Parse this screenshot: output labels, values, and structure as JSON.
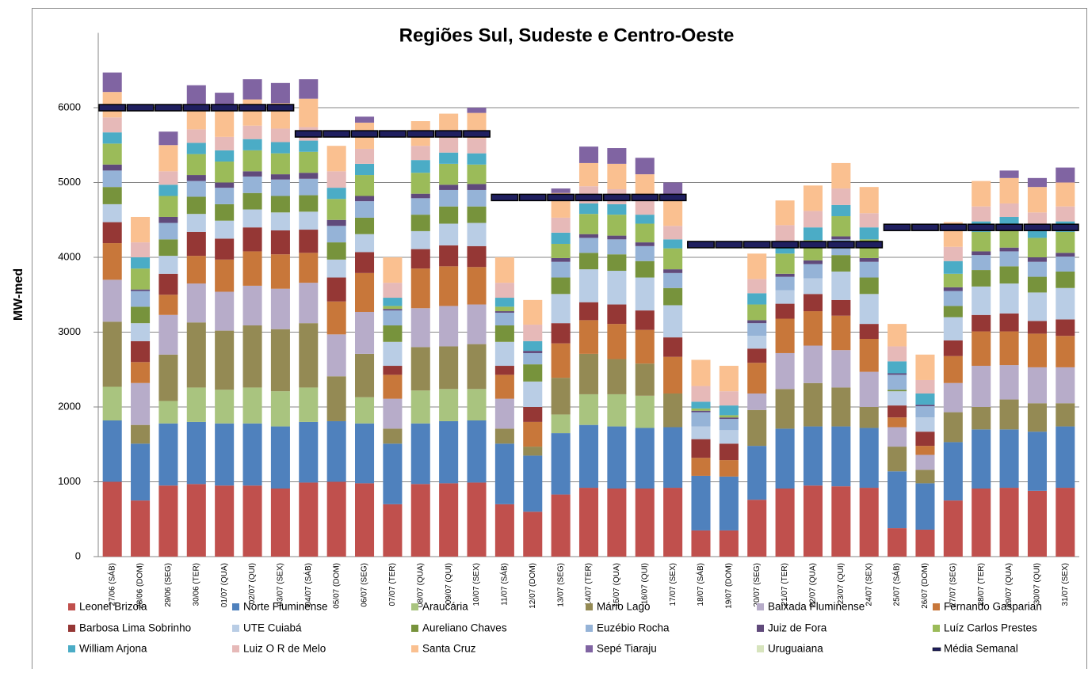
{
  "chart_data": {
    "type": "bar",
    "stacked": true,
    "title": "Regiões Sul, Sudeste e Centro-Oeste",
    "y_label": "MW-med",
    "ylim": [
      0,
      7000
    ],
    "yticks": [
      0,
      1000,
      2000,
      3000,
      4000,
      5000,
      6000
    ],
    "grid": true,
    "legend": "bottom",
    "categories": [
      "27/06 (SÁB)",
      "28/06 (DOM)",
      "29/06 (SEG)",
      "30/06 (TER)",
      "01/07 (QUA)",
      "02/07 (QUI)",
      "03/07 (SEX)",
      "04/07 (SÁB)",
      "05/07 (DOM)",
      "06/07 (SEG)",
      "07/07 (TER)",
      "08/07 (QUA)",
      "09/07 (QUI)",
      "10/07 (SEX)",
      "11/07 (SÁB)",
      "12/07 (DOM)",
      "13/07 (SEG)",
      "14/07 (TER)",
      "15/07 (QUA)",
      "16/07 (QUI)",
      "17/07 (SEX)",
      "18/07 (SÁB)",
      "19/07 (DOM)",
      "20/07 (SEG)",
      "21/07 (TER)",
      "22/07 (QUA)",
      "23/07 (QUI)",
      "24/07 (SEX)",
      "25/07 (SÁB)",
      "26/07 (DOM)",
      "27/07 (SEG)",
      "28/07 (TER)",
      "29/07 (QUA)",
      "30/07 (QUI)",
      "31/07 (SEX)"
    ],
    "series": [
      {
        "name": "Leonel Brizola",
        "color": "#c0504d",
        "values": [
          1000,
          750,
          950,
          970,
          950,
          950,
          910,
          990,
          1000,
          980,
          700,
          970,
          980,
          990,
          700,
          600,
          830,
          920,
          910,
          910,
          920,
          350,
          350,
          760,
          910,
          950,
          940,
          920,
          380,
          360,
          750,
          910,
          920,
          880,
          920
        ]
      },
      {
        "name": "Norte Fluminense",
        "color": "#4f81bd",
        "values": [
          820,
          760,
          830,
          830,
          830,
          830,
          830,
          810,
          810,
          800,
          810,
          810,
          830,
          830,
          810,
          750,
          820,
          840,
          830,
          810,
          810,
          730,
          720,
          720,
          800,
          790,
          800,
          800,
          760,
          620,
          780,
          790,
          780,
          790,
          820
        ]
      },
      {
        "name": "Araucária",
        "color": "#a9c47f",
        "values": [
          450,
          0,
          300,
          460,
          450,
          480,
          470,
          460,
          0,
          350,
          0,
          440,
          430,
          420,
          0,
          0,
          250,
          410,
          430,
          430,
          0,
          0,
          0,
          0,
          0,
          0,
          0,
          0,
          0,
          0,
          0,
          0,
          0,
          0,
          0
        ]
      },
      {
        "name": "Mário Lago",
        "color": "#948a54",
        "values": [
          870,
          250,
          620,
          870,
          790,
          830,
          830,
          860,
          600,
          580,
          200,
          580,
          570,
          600,
          200,
          120,
          490,
          540,
          470,
          430,
          450,
          0,
          0,
          480,
          530,
          580,
          520,
          280,
          330,
          180,
          400,
          300,
          400,
          380,
          310
        ]
      },
      {
        "name": "Baixada Fluminense",
        "color": "#b7acc9",
        "values": [
          560,
          560,
          530,
          520,
          520,
          530,
          540,
          540,
          560,
          560,
          400,
          520,
          540,
          530,
          400,
          0,
          0,
          0,
          0,
          0,
          0,
          0,
          0,
          220,
          480,
          500,
          500,
          470,
          260,
          200,
          390,
          550,
          460,
          480,
          480
        ]
      },
      {
        "name": "Fernando Gasparian",
        "color": "#c8773a",
        "values": [
          490,
          280,
          270,
          370,
          430,
          460,
          460,
          400,
          440,
          520,
          320,
          530,
          530,
          500,
          320,
          330,
          460,
          450,
          470,
          450,
          490,
          240,
          220,
          410,
          460,
          460,
          460,
          440,
          130,
          120,
          360,
          460,
          450,
          450,
          420
        ]
      },
      {
        "name": "Barbosa Lima Sobrinho",
        "color": "#953735",
        "values": [
          280,
          280,
          280,
          320,
          280,
          320,
          320,
          310,
          320,
          280,
          120,
          260,
          280,
          280,
          120,
          200,
          270,
          240,
          260,
          260,
          260,
          250,
          220,
          190,
          200,
          230,
          210,
          200,
          160,
          190,
          210,
          220,
          240,
          170,
          220
        ]
      },
      {
        "name": "UTE Cuiabá",
        "color": "#b9cde5",
        "values": [
          240,
          240,
          240,
          240,
          240,
          240,
          240,
          240,
          240,
          240,
          320,
          240,
          290,
          310,
          320,
          340,
          390,
          440,
          450,
          440,
          430,
          170,
          180,
          170,
          180,
          210,
          380,
          400,
          190,
          190,
          310,
          380,
          400,
          380,
          420
        ]
      },
      {
        "name": "Aureliano Chaves",
        "color": "#77933c",
        "values": [
          230,
          220,
          220,
          230,
          220,
          220,
          220,
          220,
          230,
          220,
          220,
          220,
          230,
          220,
          220,
          230,
          220,
          220,
          220,
          220,
          230,
          0,
          0,
          0,
          0,
          0,
          220,
          220,
          20,
          0,
          150,
          220,
          230,
          210,
          220
        ]
      },
      {
        "name": "Euzébio Rocha",
        "color": "#95b3d7",
        "values": [
          220,
          210,
          220,
          210,
          220,
          220,
          220,
          220,
          220,
          220,
          200,
          220,
          220,
          220,
          170,
          150,
          210,
          200,
          200,
          200,
          200,
          190,
          150,
          170,
          180,
          190,
          210,
          210,
          200,
          150,
          200,
          200,
          200,
          200,
          200
        ]
      },
      {
        "name": "Juiz de Fora",
        "color": "#604a7b",
        "values": [
          80,
          20,
          80,
          80,
          70,
          70,
          70,
          80,
          80,
          70,
          20,
          60,
          70,
          80,
          20,
          30,
          50,
          50,
          50,
          50,
          50,
          20,
          20,
          40,
          40,
          50,
          40,
          50,
          20,
          20,
          50,
          50,
          50,
          60,
          50
        ]
      },
      {
        "name": "Luíz Carlos Prestes",
        "color": "#9bbb59",
        "values": [
          280,
          280,
          280,
          280,
          280,
          280,
          280,
          280,
          280,
          280,
          40,
          280,
          280,
          260,
          60,
          0,
          190,
          270,
          280,
          250,
          280,
          30,
          30,
          210,
          270,
          270,
          270,
          250,
          0,
          0,
          180,
          260,
          260,
          260,
          280
        ]
      },
      {
        "name": "William Arjona",
        "color": "#4bacc6",
        "values": [
          150,
          150,
          150,
          150,
          150,
          150,
          150,
          150,
          150,
          150,
          110,
          170,
          150,
          150,
          120,
          130,
          150,
          140,
          140,
          120,
          120,
          90,
          130,
          150,
          130,
          170,
          150,
          160,
          160,
          150,
          170,
          140,
          150,
          140,
          140
        ]
      },
      {
        "name": "Luiz O R de Melo",
        "color": "#e6b9b8",
        "values": [
          200,
          200,
          180,
          180,
          180,
          180,
          180,
          180,
          220,
          200,
          200,
          190,
          200,
          200,
          200,
          220,
          200,
          230,
          200,
          230,
          180,
          210,
          190,
          190,
          250,
          220,
          220,
          190,
          200,
          180,
          190,
          200,
          180,
          200,
          200
        ]
      },
      {
        "name": "Santa Cruz",
        "color": "#fac090",
        "values": [
          340,
          340,
          350,
          340,
          400,
          350,
          340,
          380,
          340,
          350,
          340,
          330,
          320,
          340,
          340,
          330,
          330,
          310,
          340,
          310,
          340,
          350,
          340,
          340,
          330,
          340,
          340,
          350,
          300,
          340,
          330,
          340,
          340,
          340,
          320
        ]
      },
      {
        "name": "Sepé Tiaraju",
        "color": "#8064a2",
        "values": [
          260,
          0,
          180,
          250,
          190,
          270,
          270,
          260,
          0,
          80,
          0,
          0,
          0,
          70,
          0,
          0,
          60,
          220,
          210,
          220,
          240,
          0,
          0,
          0,
          0,
          0,
          0,
          0,
          0,
          0,
          0,
          0,
          100,
          120,
          200
        ]
      },
      {
        "name": "Uruguaiana",
        "color": "#d7e4bd",
        "values": [
          0,
          0,
          0,
          0,
          0,
          0,
          0,
          0,
          0,
          0,
          0,
          0,
          0,
          0,
          0,
          0,
          0,
          0,
          0,
          0,
          0,
          0,
          0,
          0,
          0,
          0,
          0,
          0,
          0,
          0,
          0,
          0,
          0,
          0,
          0
        ]
      },
      {
        "name": "Média Semanal",
        "color": "#1f1f5f",
        "type": "line",
        "values": [
          6000,
          6000,
          6000,
          6000,
          6000,
          6000,
          6000,
          5650,
          5650,
          5650,
          5650,
          5650,
          5650,
          5650,
          4800,
          4800,
          4800,
          4800,
          4800,
          4800,
          4800,
          4170,
          4170,
          4170,
          4170,
          4170,
          4170,
          4170,
          4400,
          4400,
          4400,
          4400,
          4400,
          4400,
          4400
        ]
      }
    ]
  }
}
